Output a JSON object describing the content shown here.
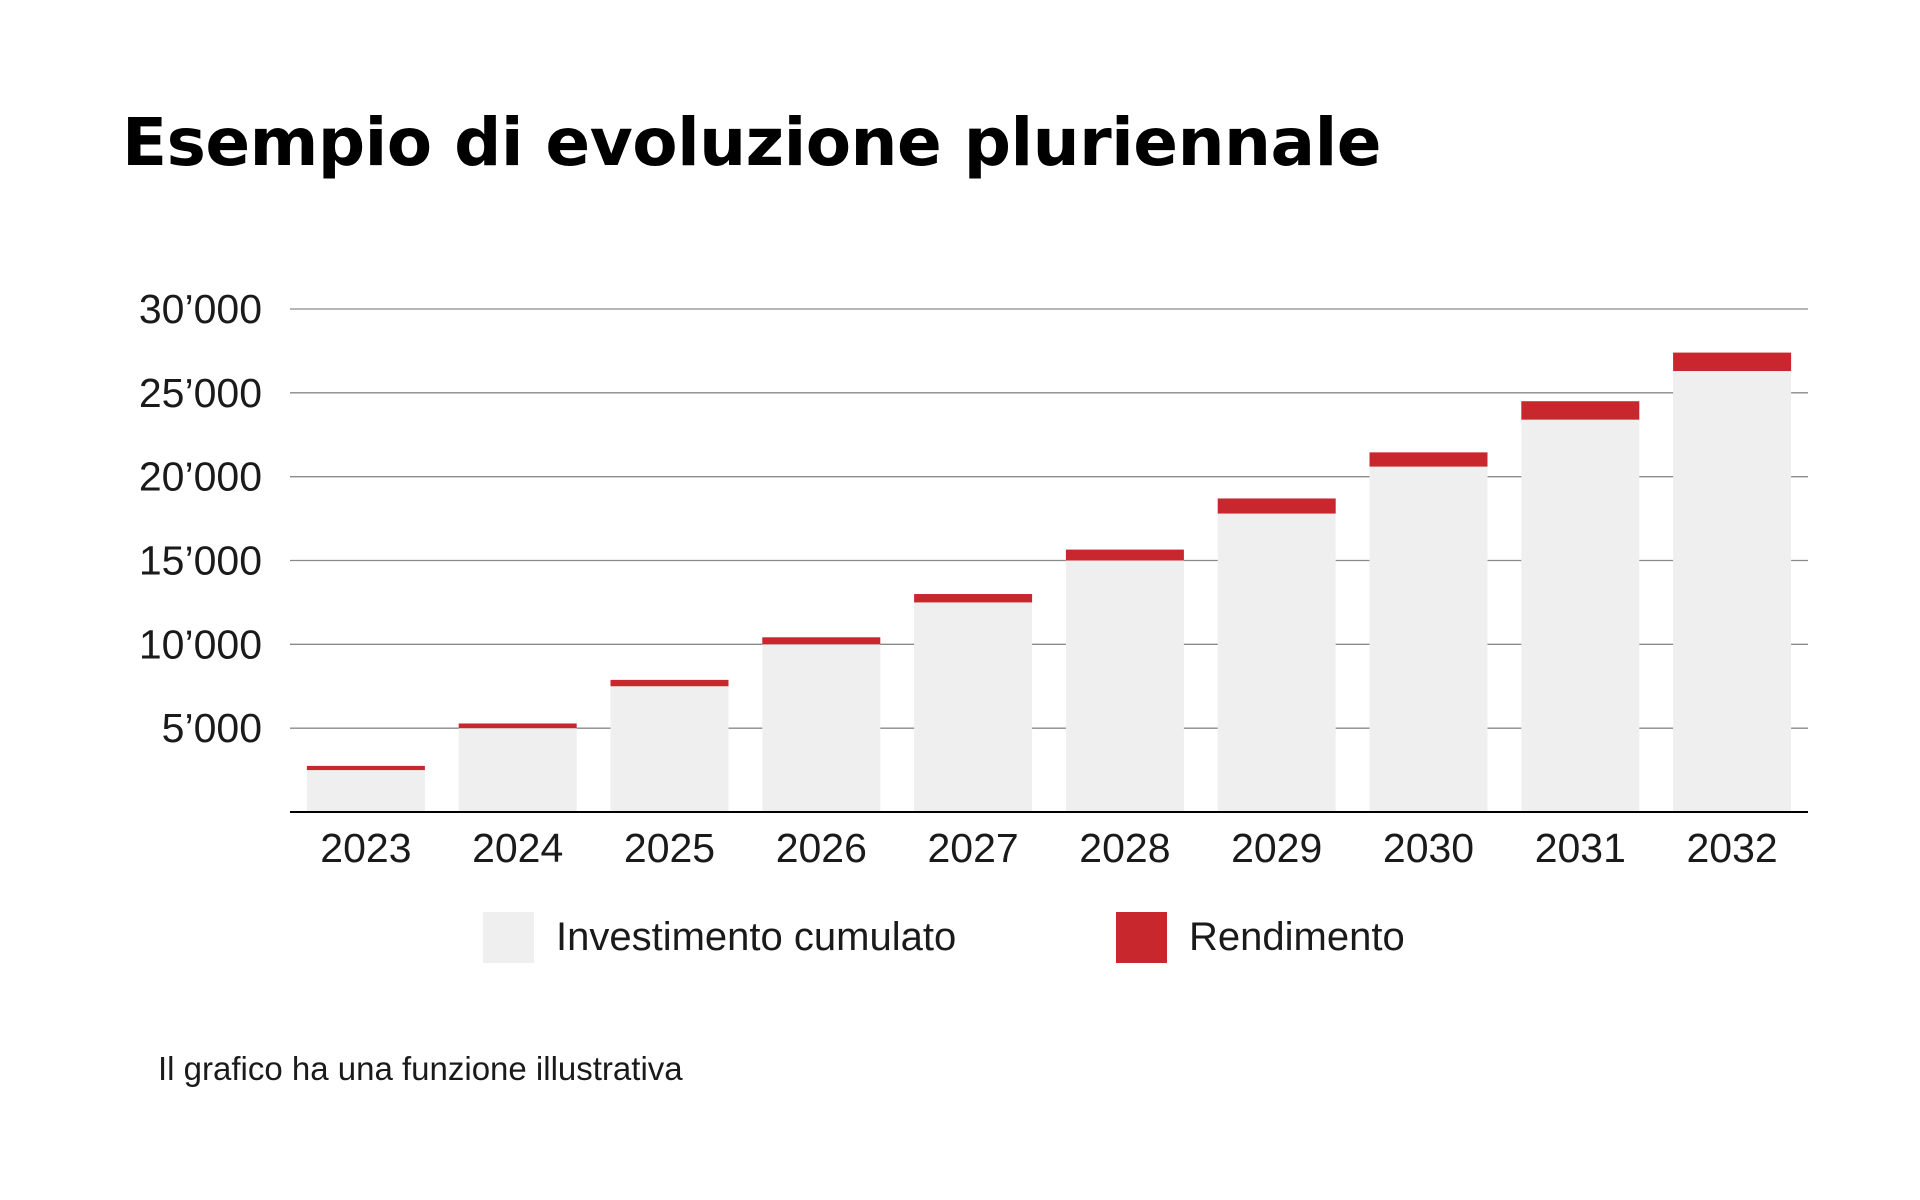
{
  "chart_data": {
    "type": "bar",
    "stacked": true,
    "title": "Esempio di evoluzione pluriennale",
    "categories": [
      "2023",
      "2024",
      "2025",
      "2026",
      "2027",
      "2028",
      "2029",
      "2030",
      "2031",
      "2032"
    ],
    "series": [
      {
        "name": "Investimento cumulato",
        "color": "#efefef",
        "values": [
          2500,
          5000,
          7500,
          10000,
          12500,
          15000,
          17800,
          20600,
          23400,
          26300
        ]
      },
      {
        "name": "Rendimento",
        "color": "#c8272d",
        "values": [
          250,
          280,
          380,
          420,
          500,
          650,
          900,
          850,
          1100,
          1100
        ]
      }
    ],
    "yticks": [
      5000,
      10000,
      15000,
      20000,
      25000,
      30000
    ],
    "ytick_labels": [
      "5’000",
      "10’000",
      "15’000",
      "20’000",
      "25’000",
      "30’000"
    ],
    "ylim": [
      0,
      30000
    ],
    "grid": true,
    "legend_position": "bottom"
  },
  "footnote": "Il grafico ha una funzione illustrativa"
}
